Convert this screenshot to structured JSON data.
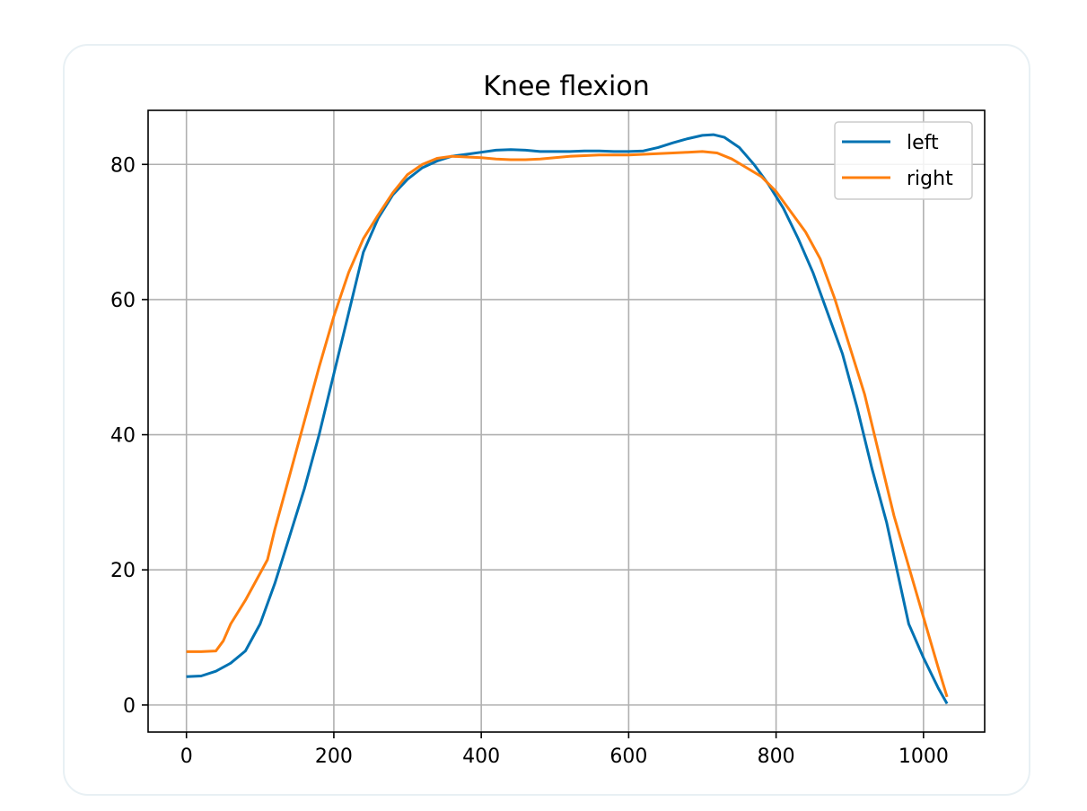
{
  "chart_data": {
    "type": "line",
    "title": "Knee flexion",
    "xlabel": "",
    "ylabel": "",
    "xlim": [
      -52,
      1083
    ],
    "ylim": [
      -4,
      88
    ],
    "xticks": [
      0,
      200,
      400,
      600,
      800,
      1000
    ],
    "yticks": [
      0,
      20,
      40,
      60,
      80
    ],
    "grid": true,
    "legend_position": "top-right",
    "series": [
      {
        "name": "left",
        "color": "#0072b2",
        "points": [
          [
            0,
            4.2
          ],
          [
            20,
            4.3
          ],
          [
            40,
            5.0
          ],
          [
            60,
            6.2
          ],
          [
            80,
            8.0
          ],
          [
            100,
            12.0
          ],
          [
            120,
            18.0
          ],
          [
            140,
            25.0
          ],
          [
            160,
            32.0
          ],
          [
            180,
            40.0
          ],
          [
            200,
            49.0
          ],
          [
            220,
            58.0
          ],
          [
            240,
            67.0
          ],
          [
            260,
            72.0
          ],
          [
            280,
            75.5
          ],
          [
            300,
            77.8
          ],
          [
            320,
            79.5
          ],
          [
            340,
            80.5
          ],
          [
            360,
            81.2
          ],
          [
            380,
            81.5
          ],
          [
            400,
            81.8
          ],
          [
            420,
            82.1
          ],
          [
            440,
            82.2
          ],
          [
            460,
            82.1
          ],
          [
            480,
            81.9
          ],
          [
            500,
            81.9
          ],
          [
            520,
            81.9
          ],
          [
            540,
            82.0
          ],
          [
            560,
            82.0
          ],
          [
            580,
            81.9
          ],
          [
            600,
            81.9
          ],
          [
            620,
            82.0
          ],
          [
            640,
            82.5
          ],
          [
            660,
            83.2
          ],
          [
            680,
            83.8
          ],
          [
            700,
            84.3
          ],
          [
            715,
            84.4
          ],
          [
            730,
            84.0
          ],
          [
            750,
            82.5
          ],
          [
            770,
            80.0
          ],
          [
            790,
            77.0
          ],
          [
            810,
            73.5
          ],
          [
            830,
            69.0
          ],
          [
            850,
            64.0
          ],
          [
            870,
            58.0
          ],
          [
            890,
            52.0
          ],
          [
            910,
            44.0
          ],
          [
            930,
            35.0
          ],
          [
            950,
            27.0
          ],
          [
            965,
            19.5
          ],
          [
            980,
            12.0
          ],
          [
            1000,
            7.0
          ],
          [
            1020,
            2.5
          ],
          [
            1032,
            0.2
          ]
        ]
      },
      {
        "name": "right",
        "color": "#ff7f0e",
        "points": [
          [
            0,
            7.9
          ],
          [
            20,
            7.9
          ],
          [
            40,
            8.0
          ],
          [
            50,
            9.5
          ],
          [
            60,
            12.0
          ],
          [
            80,
            15.5
          ],
          [
            100,
            19.5
          ],
          [
            110,
            21.5
          ],
          [
            120,
            26.0
          ],
          [
            140,
            34.0
          ],
          [
            160,
            42.0
          ],
          [
            180,
            50.0
          ],
          [
            200,
            57.5
          ],
          [
            220,
            64.0
          ],
          [
            240,
            69.0
          ],
          [
            260,
            72.5
          ],
          [
            280,
            75.8
          ],
          [
            300,
            78.5
          ],
          [
            320,
            80.0
          ],
          [
            340,
            80.9
          ],
          [
            360,
            81.2
          ],
          [
            380,
            81.1
          ],
          [
            400,
            81.0
          ],
          [
            420,
            80.8
          ],
          [
            440,
            80.7
          ],
          [
            460,
            80.7
          ],
          [
            480,
            80.8
          ],
          [
            500,
            81.0
          ],
          [
            520,
            81.2
          ],
          [
            540,
            81.3
          ],
          [
            560,
            81.4
          ],
          [
            580,
            81.4
          ],
          [
            600,
            81.4
          ],
          [
            620,
            81.5
          ],
          [
            640,
            81.6
          ],
          [
            660,
            81.7
          ],
          [
            680,
            81.8
          ],
          [
            700,
            81.9
          ],
          [
            720,
            81.7
          ],
          [
            740,
            80.8
          ],
          [
            760,
            79.5
          ],
          [
            780,
            78.2
          ],
          [
            800,
            76.0
          ],
          [
            820,
            73.0
          ],
          [
            840,
            70.0
          ],
          [
            860,
            66.0
          ],
          [
            880,
            60.0
          ],
          [
            900,
            53.0
          ],
          [
            920,
            46.0
          ],
          [
            940,
            37.0
          ],
          [
            960,
            28.0
          ],
          [
            980,
            20.5
          ],
          [
            1000,
            13.0
          ],
          [
            1020,
            5.5
          ],
          [
            1032,
            1.2
          ]
        ]
      }
    ]
  }
}
